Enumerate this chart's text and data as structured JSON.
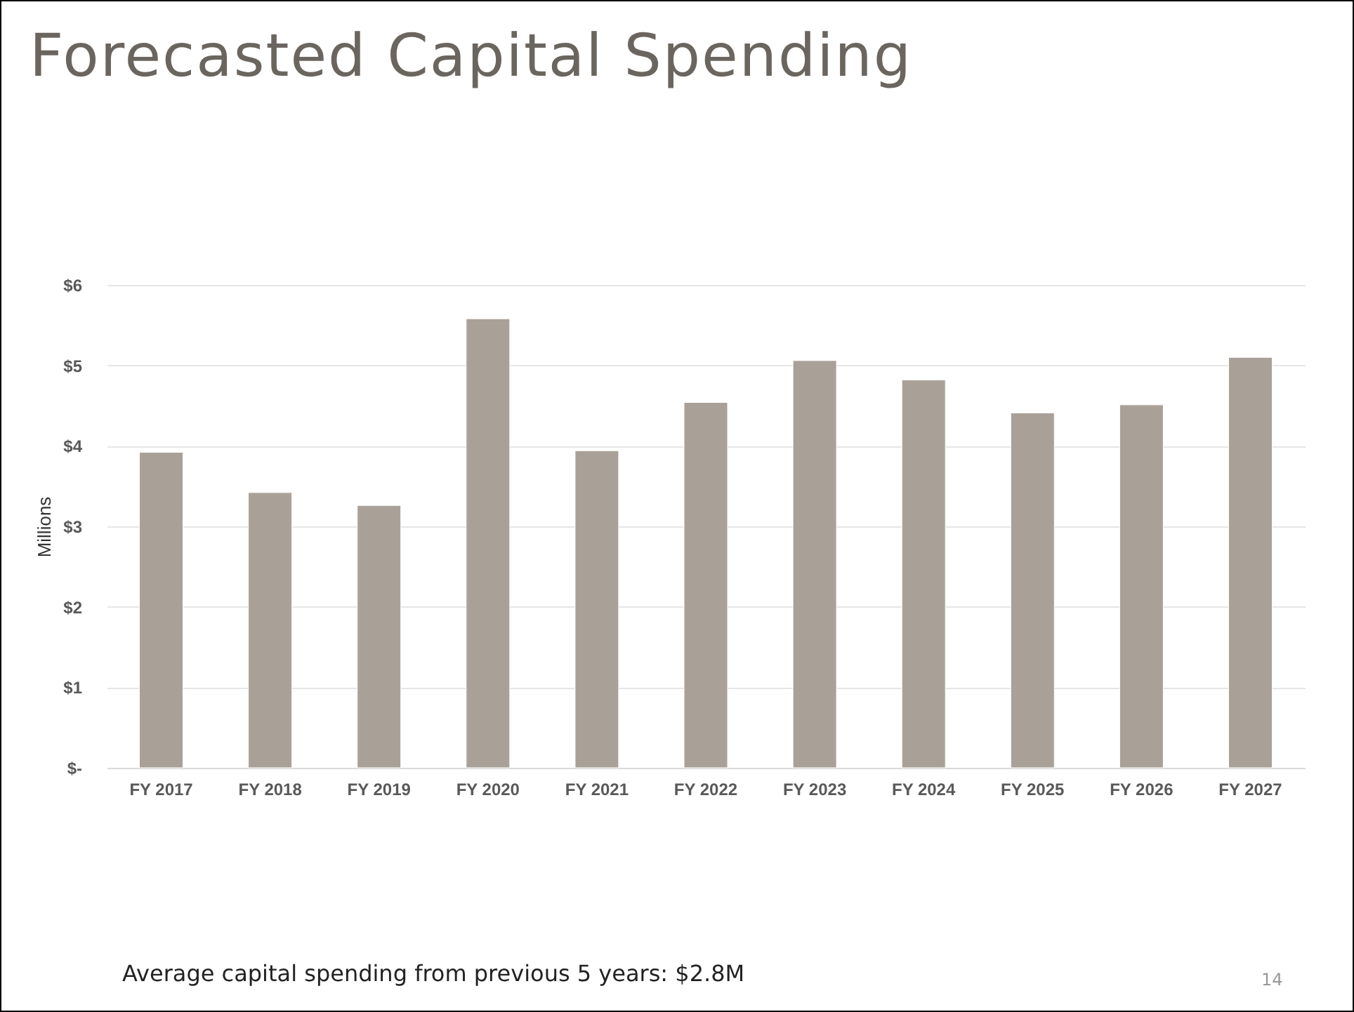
{
  "chart_data": {
    "type": "bar",
    "title": "Forecasted Capital Spending",
    "ylabel": "Millions",
    "categories": [
      "FY 2017",
      "FY 2018",
      "FY 2019",
      "FY 2020",
      "FY 2021",
      "FY 2022",
      "FY 2023",
      "FY 2024",
      "FY 2025",
      "FY 2026",
      "FY 2027"
    ],
    "values": [
      3.92,
      3.42,
      3.26,
      5.58,
      3.94,
      4.54,
      5.06,
      4.82,
      4.41,
      4.51,
      5.1
    ],
    "color": "#a9a197",
    "ylim": [
      0,
      6
    ],
    "yticks": [
      {
        "value": 0,
        "label": "$-"
      },
      {
        "value": 1,
        "label": "$1"
      },
      {
        "value": 2,
        "label": "$2"
      },
      {
        "value": 3,
        "label": "$3"
      },
      {
        "value": 4,
        "label": "$4"
      },
      {
        "value": 5,
        "label": "$5"
      },
      {
        "value": 6,
        "label": "$6"
      }
    ],
    "grid": "y",
    "annotations": [
      "Average capital spending from previous 5 years: $2.8M",
      "14"
    ]
  }
}
